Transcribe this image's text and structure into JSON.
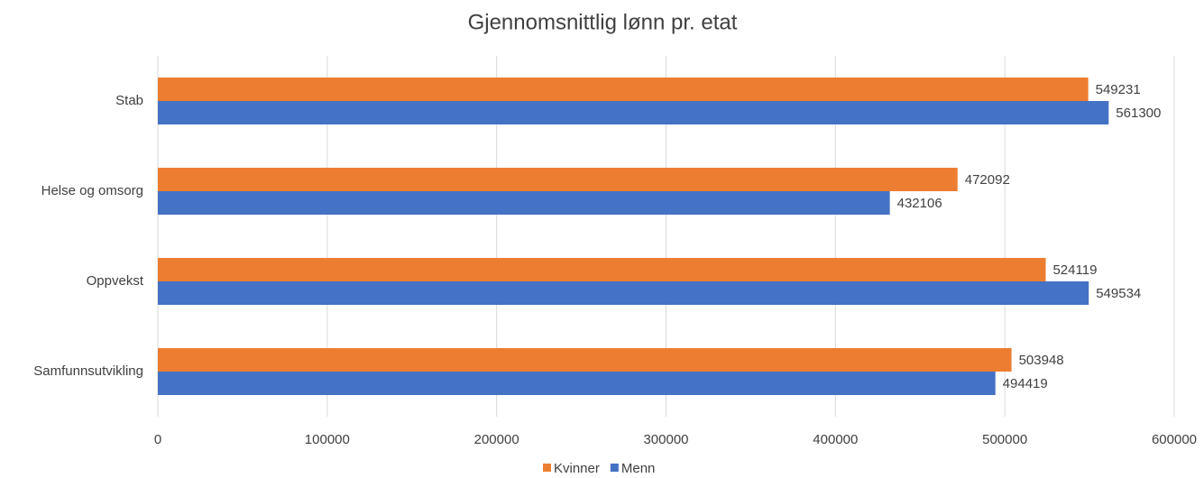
{
  "chart_data": {
    "type": "bar",
    "orientation": "horizontal",
    "title": "Gjennomsnittlig lønn pr. etat",
    "categories": [
      "Stab",
      "Helse og omsorg",
      "Oppvekst",
      "Samfunnsutvikling"
    ],
    "series": [
      {
        "name": "Kvinner",
        "color": "#ED7D31",
        "values": [
          549231,
          472092,
          524119,
          503948
        ]
      },
      {
        "name": "Menn",
        "color": "#4472C4",
        "values": [
          561300,
          432106,
          549534,
          494419
        ]
      }
    ],
    "xlim": [
      0,
      600000
    ],
    "xticks": [
      0,
      100000,
      200000,
      300000,
      400000,
      500000,
      600000
    ],
    "grid": true,
    "legend": "bottom"
  }
}
